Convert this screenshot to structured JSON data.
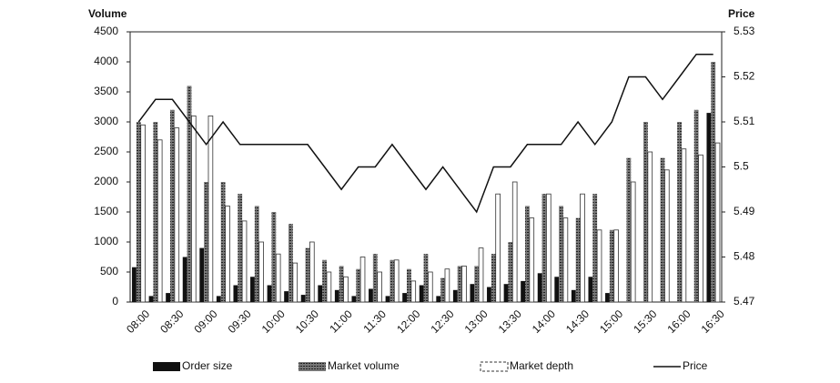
{
  "chart_data": {
    "type": "bar-line",
    "y_title": "Volume",
    "y2_title": "Price",
    "categories": [
      "08:00",
      null,
      "08:30",
      null,
      "09:00",
      null,
      "09:30",
      null,
      "10:00",
      null,
      "10:30",
      null,
      "11:00",
      null,
      "11:30",
      null,
      "12:00",
      null,
      "12:30",
      null,
      "13:00",
      null,
      "13:30",
      null,
      "14:00",
      null,
      "14:30",
      null,
      "15:00",
      null,
      "15:30",
      null,
      "16:00",
      null,
      "16:30"
    ],
    "series": [
      {
        "name": "Order size",
        "kind": "bar",
        "color": "#111111",
        "values": [
          580,
          100,
          150,
          750,
          900,
          100,
          280,
          420,
          280,
          180,
          120,
          280,
          200,
          100,
          220,
          100,
          150,
          280,
          100,
          200,
          300,
          250,
          300,
          350,
          480,
          420,
          200,
          420,
          150,
          0,
          0,
          0,
          0,
          0,
          3150
        ]
      },
      {
        "name": "Market volume",
        "kind": "bar",
        "color": "#4a4a4a",
        "values": [
          3000,
          3000,
          3200,
          3600,
          2000,
          2000,
          1800,
          1600,
          1500,
          1300,
          900,
          700,
          600,
          550,
          800,
          700,
          550,
          800,
          400,
          600,
          600,
          800,
          1000,
          1600,
          1800,
          1600,
          1400,
          1800,
          1200,
          2400,
          3000,
          2400,
          3000,
          3200,
          4000
        ]
      },
      {
        "name": "Market depth",
        "kind": "bar",
        "color": "#ffffff",
        "values": [
          2950,
          2700,
          2900,
          3100,
          3100,
          1600,
          1350,
          1000,
          800,
          650,
          1000,
          500,
          420,
          750,
          500,
          700,
          350,
          500,
          550,
          600,
          900,
          1800,
          2000,
          1400,
          1800,
          1400,
          1800,
          1200,
          1200,
          2000,
          2500,
          2200,
          2550,
          2450,
          2650
        ]
      },
      {
        "name": "Price",
        "kind": "line",
        "axis": "y2",
        "color": "#111111",
        "values": [
          5.51,
          5.515,
          5.515,
          5.51,
          5.505,
          5.51,
          5.505,
          5.505,
          5.505,
          5.505,
          5.505,
          5.5,
          5.495,
          5.5,
          5.5,
          5.505,
          5.5,
          5.495,
          5.5,
          5.495,
          5.49,
          5.5,
          5.5,
          5.505,
          5.505,
          5.505,
          5.51,
          5.505,
          5.51,
          5.52,
          5.52,
          5.515,
          5.52,
          5.525,
          5.525
        ]
      }
    ],
    "ylim": [
      0,
      4500
    ],
    "yticks": [
      0,
      500,
      1000,
      1500,
      2000,
      2500,
      3000,
      3500,
      4000,
      4500
    ],
    "y2lim": [
      5.47,
      5.53
    ],
    "y2ticks": [
      5.47,
      5.48,
      5.49,
      5.5,
      5.51,
      5.52,
      5.53
    ]
  }
}
